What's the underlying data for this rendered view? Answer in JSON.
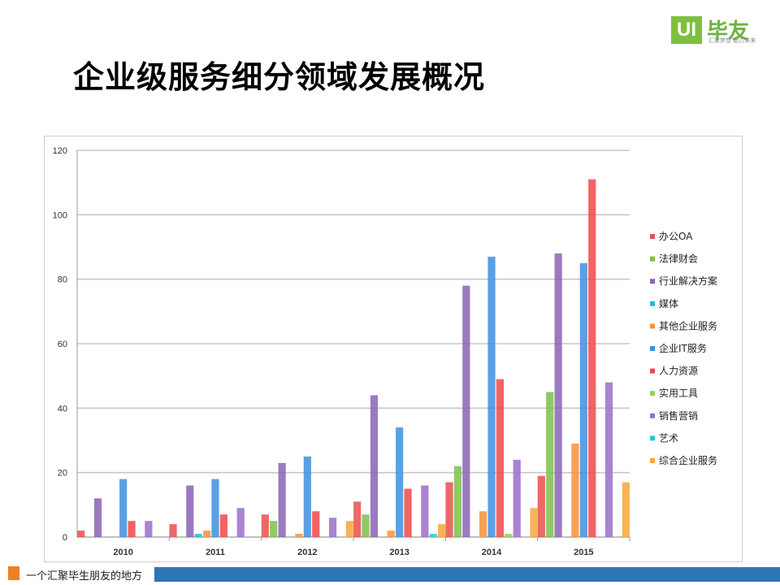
{
  "logo": {
    "mark": "UI",
    "name": "毕友",
    "tagline": "汇聚梦想 助力未来"
  },
  "page_title": "企业级服务细分领域发展概况",
  "footer": {
    "text": "一个汇聚毕生朋友的地方"
  },
  "colors": {
    "footer_square": "#f07f22",
    "footer_bar": "#2e75b6",
    "logo_green": "#7fbf3f"
  },
  "chart_data": {
    "type": "bar",
    "title": "",
    "xlabel": "",
    "ylabel": "",
    "ylim": [
      0,
      120
    ],
    "yticks": [
      0,
      20,
      40,
      60,
      80,
      100,
      120
    ],
    "grid": true,
    "legend_position": "right",
    "categories": [
      "2010",
      "2011",
      "2012",
      "2013",
      "2014",
      "2015"
    ],
    "series": [
      {
        "name": "办公OA",
        "color": "#e8504c",
        "values": [
          2,
          4,
          7,
          11,
          17,
          19
        ]
      },
      {
        "name": "法律财会",
        "color": "#7cc04a",
        "values": [
          0,
          0,
          5,
          7,
          22,
          45
        ]
      },
      {
        "name": "行业解决方案",
        "color": "#8b63b5",
        "values": [
          12,
          16,
          23,
          44,
          78,
          88
        ]
      },
      {
        "name": "媒体",
        "color": "#28b9d3",
        "values": [
          0,
          1,
          0,
          0,
          0,
          0
        ]
      },
      {
        "name": "其他企业服务",
        "color": "#f5923a",
        "values": [
          0,
          2,
          1,
          2,
          8,
          29
        ]
      },
      {
        "name": "企业IT服务",
        "color": "#3d8fe0",
        "values": [
          18,
          18,
          25,
          34,
          87,
          85
        ]
      },
      {
        "name": "人力资源",
        "color": "#f04848",
        "values": [
          5,
          7,
          8,
          15,
          49,
          111
        ]
      },
      {
        "name": "实用工具",
        "color": "#8fd151",
        "values": [
          0,
          0,
          0,
          0,
          1,
          0
        ]
      },
      {
        "name": "销售营销",
        "color": "#9a6fc8",
        "values": [
          5,
          9,
          6,
          16,
          24,
          48
        ]
      },
      {
        "name": "艺术",
        "color": "#2bc6dc",
        "values": [
          0,
          0,
          0,
          1,
          0,
          0
        ]
      },
      {
        "name": "综合企业服务",
        "color": "#f9a43a",
        "values": [
          0,
          0,
          5,
          4,
          9,
          17
        ]
      }
    ]
  }
}
